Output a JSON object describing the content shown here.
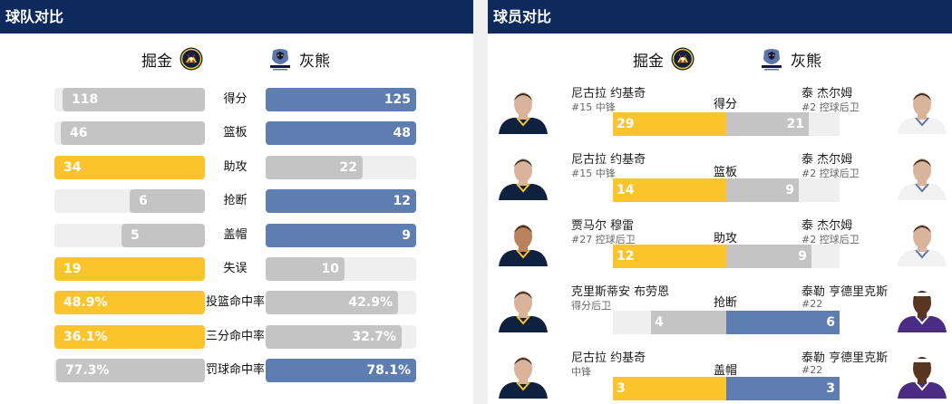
{
  "team_panel": {
    "title": "球队对比",
    "home_team": "掘金",
    "away_team": "灰熊",
    "stats": [
      {
        "label": "得分",
        "home": "118",
        "away": "125",
        "home_frac": 0.944,
        "away_frac": 1.0,
        "home_color": "gray",
        "away_color": "blue"
      },
      {
        "label": "篮板",
        "home": "46",
        "away": "48",
        "home_frac": 0.958,
        "away_frac": 1.0,
        "home_color": "gray",
        "away_color": "blue"
      },
      {
        "label": "助攻",
        "home": "34",
        "away": "22",
        "home_frac": 1.0,
        "away_frac": 0.647,
        "home_color": "gold",
        "away_color": "gray"
      },
      {
        "label": "抢断",
        "home": "6",
        "away": "12",
        "home_frac": 0.5,
        "away_frac": 1.0,
        "home_color": "gray",
        "away_color": "blue"
      },
      {
        "label": "盖帽",
        "home": "5",
        "away": "9",
        "home_frac": 0.556,
        "away_frac": 1.0,
        "home_color": "gray",
        "away_color": "blue"
      },
      {
        "label": "失误",
        "home": "19",
        "away": "10",
        "home_frac": 1.0,
        "away_frac": 0.526,
        "home_color": "gold",
        "away_color": "gray"
      },
      {
        "label": "投篮命中率",
        "home": "48.9%",
        "away": "42.9%",
        "home_frac": 1.0,
        "away_frac": 0.877,
        "home_color": "gold",
        "away_color": "gray"
      },
      {
        "label": "三分命中率",
        "home": "36.1%",
        "away": "32.7%",
        "home_frac": 1.0,
        "away_frac": 0.906,
        "home_color": "gold",
        "away_color": "gray"
      },
      {
        "label": "罚球命中率",
        "home": "77.3%",
        "away": "78.1%",
        "home_frac": 0.99,
        "away_frac": 1.0,
        "home_color": "gray",
        "away_color": "blue"
      }
    ]
  },
  "player_panel": {
    "title": "球员对比",
    "home_team": "掘金",
    "away_team": "灰熊",
    "rows": [
      {
        "category": "得分",
        "home_player": "尼古拉 约基奇",
        "home_sub": "#15 中锋",
        "away_player": "泰 杰尔姆",
        "away_sub": "#2 控球后卫",
        "home_value": "29",
        "away_value": "21",
        "home_frac": 1.0,
        "away_frac": 0.724,
        "home_color": "gold",
        "away_color": "gray",
        "home_skin": "light",
        "away_skin": "light",
        "away_jersey": "white"
      },
      {
        "category": "篮板",
        "home_player": "尼古拉 约基奇",
        "home_sub": "#15 中锋",
        "away_player": "泰 杰尔姆",
        "away_sub": "#2 控球后卫",
        "home_value": "14",
        "away_value": "9",
        "home_frac": 1.0,
        "away_frac": 0.643,
        "home_color": "gold",
        "away_color": "gray",
        "home_skin": "light",
        "away_skin": "light",
        "away_jersey": "white"
      },
      {
        "category": "助攻",
        "home_player": "贾马尔 穆雷",
        "home_sub": "#27 控球后卫",
        "away_player": "泰 杰尔姆",
        "away_sub": "#2 控球后卫",
        "home_value": "12",
        "away_value": "9",
        "home_frac": 1.0,
        "away_frac": 0.75,
        "home_color": "gold",
        "away_color": "gray",
        "home_skin": "tan",
        "away_skin": "light",
        "away_jersey": "white"
      },
      {
        "category": "抢断",
        "home_player": "克里斯蒂安 布劳恩",
        "home_sub": "得分后卫",
        "away_player": "泰勒 亨德里克斯",
        "away_sub": "#22",
        "home_value": "4",
        "away_value": "6",
        "home_frac": 0.667,
        "away_frac": 1.0,
        "home_color": "gray",
        "away_color": "blue",
        "home_skin": "light",
        "away_skin": "dark",
        "away_jersey": "purple"
      },
      {
        "category": "盖帽",
        "home_player": "尼古拉 约基奇",
        "home_sub": "中锋",
        "away_player": "泰勒 亨德里克斯",
        "away_sub": "#22",
        "home_value": "3",
        "away_value": "3",
        "home_frac": 1.0,
        "away_frac": 1.0,
        "home_color": "gold",
        "away_color": "blue",
        "home_skin": "light",
        "away_skin": "dark",
        "away_jersey": "purple"
      }
    ]
  },
  "colors": {
    "header_bg": "#0e2a5c",
    "gold": "#fbc42c",
    "blue": "#5e7db1",
    "gray": "#c4c4c4",
    "track": "#efefef"
  },
  "icons": {
    "home_logo": "nuggets-logo",
    "away_logo": "grizzlies-logo"
  }
}
